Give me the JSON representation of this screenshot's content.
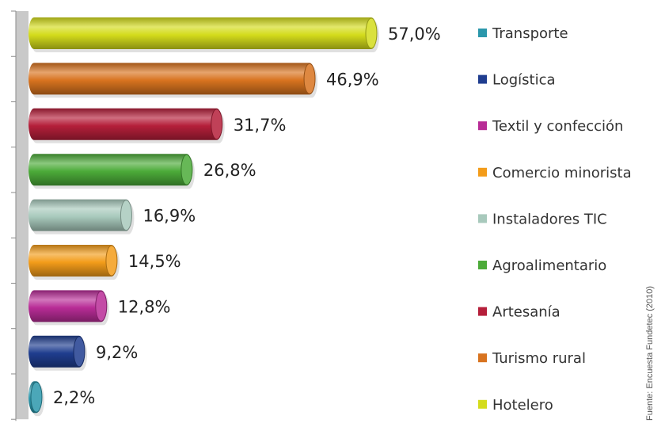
{
  "chart_data": {
    "type": "bar",
    "orientation": "horizontal",
    "categories": [
      "Hotelero",
      "Turismo rural",
      "Artesanía",
      "Agroalimentario",
      "Instaladores TIC",
      "Comercio minorista",
      "Textil y confección",
      "Logística",
      "Transporte"
    ],
    "values": [
      57.0,
      46.9,
      31.7,
      26.8,
      16.9,
      14.5,
      12.8,
      9.2,
      2.2
    ],
    "value_labels": [
      "57,0%",
      "46,9%",
      "31,7%",
      "26,8%",
      "16,9%",
      "14,5%",
      "12,8%",
      "9,2%",
      "2,2%"
    ],
    "colors": [
      "#d4dc1c",
      "#d8731f",
      "#b51f3a",
      "#4cab39",
      "#a8c9bc",
      "#f39c1a",
      "#b82c96",
      "#1f3d8f",
      "#2b97ab"
    ],
    "xlim": [
      0,
      57
    ],
    "grid": false,
    "legend_position": "right",
    "legend": [
      {
        "label": "Transporte",
        "color": "#2b97ab"
      },
      {
        "label": "Logística",
        "color": "#1f3d8f"
      },
      {
        "label": "Textil y confección",
        "color": "#b82c96"
      },
      {
        "label": "Comercio minorista",
        "color": "#f39c1a"
      },
      {
        "label": "Instaladores TIC",
        "color": "#a8c9bc"
      },
      {
        "label": "Agroalimentario",
        "color": "#4cab39"
      },
      {
        "label": "Artesanía",
        "color": "#b51f3a"
      },
      {
        "label": "Turismo rural",
        "color": "#d8731f"
      },
      {
        "label": "Hotelero",
        "color": "#d4dc1c"
      }
    ],
    "source": "Fuente: Encuesta Fundetec (2010)"
  }
}
